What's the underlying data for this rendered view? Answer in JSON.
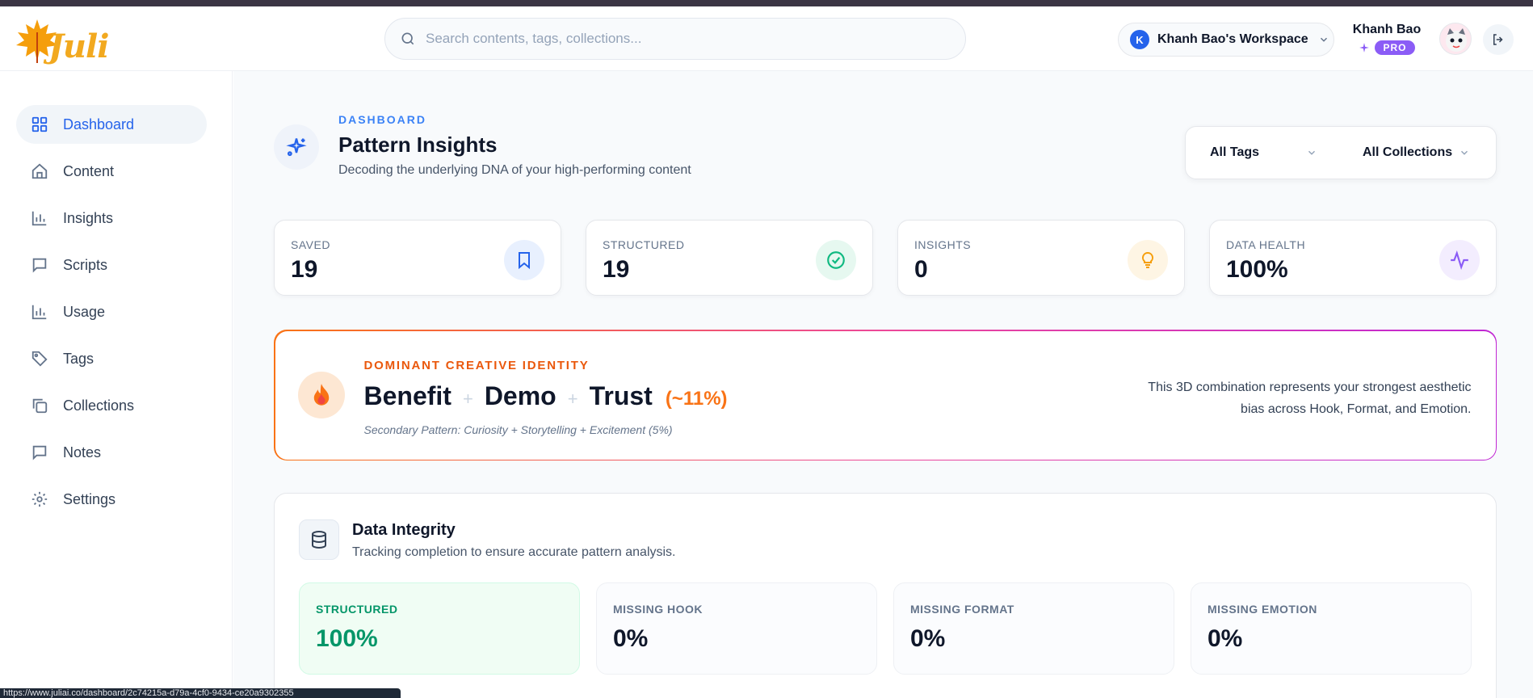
{
  "app": {
    "logo_text": "Juli",
    "brand_color": "#f2a91f"
  },
  "search": {
    "placeholder": "Search contents, tags, collections..."
  },
  "workspace": {
    "initial": "K",
    "name": "Khanh Bao's Workspace"
  },
  "user": {
    "name": "Khanh Bao",
    "plan_badge": "PRO"
  },
  "sidebar": {
    "items": [
      {
        "label": "Dashboard",
        "icon": "grid-icon",
        "active": true
      },
      {
        "label": "Content",
        "icon": "home-icon"
      },
      {
        "label": "Insights",
        "icon": "bar-chart-icon"
      },
      {
        "label": "Scripts",
        "icon": "message-square-icon"
      },
      {
        "label": "Usage",
        "icon": "bar-chart-icon"
      },
      {
        "label": "Tags",
        "icon": "tag-icon"
      },
      {
        "label": "Collections",
        "icon": "copy-icon"
      },
      {
        "label": "Notes",
        "icon": "message-square-icon"
      },
      {
        "label": "Settings",
        "icon": "gear-icon"
      }
    ]
  },
  "page": {
    "eyebrow": "DASHBOARD",
    "title": "Pattern Insights",
    "subtitle": "Decoding the underlying DNA of your high-performing content"
  },
  "filters": {
    "tags": "All Tags",
    "collections": "All Collections"
  },
  "stats": [
    {
      "label": "SAVED",
      "value": "19",
      "icon": "bookmark-icon",
      "color": "#2563eb"
    },
    {
      "label": "STRUCTURED",
      "value": "19",
      "icon": "check-circle-icon",
      "color": "#10b981"
    },
    {
      "label": "INSIGHTS",
      "value": "0",
      "icon": "lightbulb-icon",
      "color": "#f59e0b"
    },
    {
      "label": "DATA HEALTH",
      "value": "100%",
      "icon": "activity-icon",
      "color": "#8b5cf6"
    }
  ],
  "identity": {
    "eyebrow": "DOMINANT CREATIVE IDENTITY",
    "words": [
      "Benefit",
      "Demo",
      "Trust"
    ],
    "percent": "(~11%)",
    "secondary": "Secondary Pattern: Curiosity + Storytelling + Excitement (5%)",
    "description": "This 3D combination represents your strongest aesthetic bias across Hook, Format, and Emotion."
  },
  "integrity": {
    "title": "Data Integrity",
    "subtitle": "Tracking completion to ensure accurate pattern analysis.",
    "metrics": [
      {
        "label": "STRUCTURED",
        "value": "100%"
      },
      {
        "label": "MISSING HOOK",
        "value": "0%"
      },
      {
        "label": "MISSING FORMAT",
        "value": "0%"
      },
      {
        "label": "MISSING EMOTION",
        "value": "0%"
      }
    ]
  },
  "statusbar": {
    "url": "https://www.juliai.co/dashboard/2c74215a-d79a-4cf0-9434-ce20a9302355"
  }
}
